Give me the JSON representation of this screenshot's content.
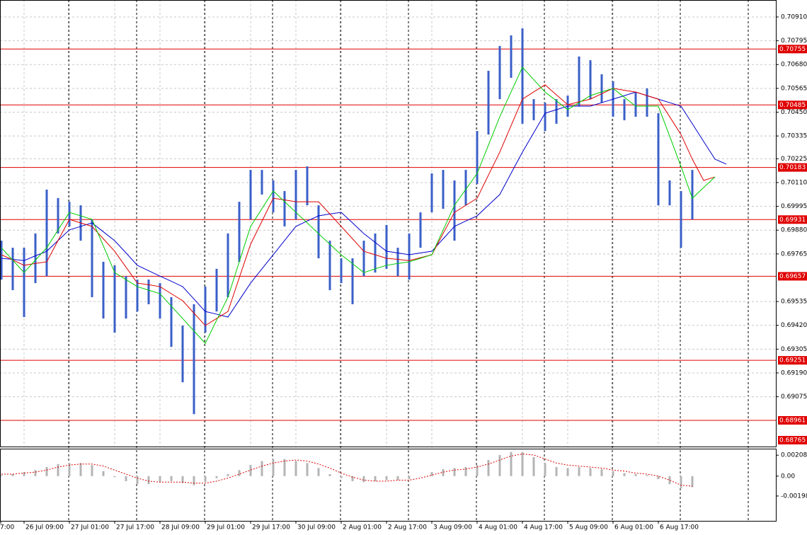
{
  "chart_data": {
    "type": "price_bars",
    "categories": [
      "7:00",
      null,
      null,
      null,
      "26 Jul 09:00",
      null,
      null,
      null,
      "27 Jul 01:00",
      null,
      null,
      null,
      "27 Jul 17:00",
      null,
      null,
      null,
      "28 Jul 09:00",
      null,
      null,
      null,
      "29 Jul 01:00",
      null,
      null,
      null,
      "29 Jul 17:00",
      null,
      null,
      null,
      "30 Jul 09:00",
      null,
      null,
      null,
      "2 Aug 01:00",
      null,
      null,
      null,
      "2 Aug 17:00",
      null,
      null,
      null,
      "3 Aug 09:00",
      null,
      null,
      null,
      "4 Aug 01:00",
      null,
      null,
      null,
      "4 Aug 17:00",
      null,
      null,
      null,
      "5 Aug 09:00",
      null,
      null,
      null,
      "6 Aug 01:00",
      null,
      null,
      null,
      "6 Aug 17:00",
      null,
      null,
      null,
      null,
      null,
      null
    ],
    "high": [
      null,
      null,
      0.69829,
      0.69795,
      0.69795,
      0.69864,
      0.70076,
      0.70035,
      0.70017,
      0.7,
      0.69932,
      0.69727,
      0.6971,
      0.69658,
      0.69641,
      0.69641,
      0.69624,
      0.69556,
      0.69419,
      0.69522,
      0.69607,
      0.69693,
      0.69864,
      0.70017,
      0.70171,
      0.70171,
      0.7012,
      0.70069,
      0.70171,
      0.70188,
      0.7,
      0.69829,
      0.69744,
      0.69744,
      0.69829,
      0.69864,
      0.69905,
      0.69795,
      0.69864,
      0.69966,
      0.70154,
      0.70171,
      0.7012,
      0.70171,
      0.70359,
      0.7065,
      0.7077,
      0.70821,
      0.70855,
      0.70513,
      0.70496,
      0.70513,
      0.7053,
      0.70719,
      0.70701,
      0.70633,
      0.70599,
      0.70513,
      0.70548,
      0.70565,
      0.70445,
      0.7012,
      0.70069,
      0.70171,
      null,
      null,
      null
    ],
    "low": [
      null,
      null,
      0.69641,
      0.6959,
      0.6946,
      0.69624,
      0.69658,
      0.69864,
      0.69898,
      0.69829,
      0.69556,
      0.69453,
      0.69385,
      0.69453,
      0.69487,
      0.69522,
      0.69453,
      0.69316,
      0.69145,
      0.68991,
      0.69385,
      0.69487,
      0.69556,
      0.69727,
      0.69932,
      0.70052,
      0.69966,
      0.69898,
      0.69932,
      0.7,
      0.69744,
      0.6959,
      0.69624,
      0.69522,
      0.69658,
      0.69675,
      0.69693,
      0.69658,
      0.69641,
      0.69795,
      0.69966,
      0.69983,
      0.69829,
      0.7,
      0.70103,
      0.70342,
      0.70513,
      0.70616,
      0.70394,
      0.70411,
      0.70359,
      0.70394,
      0.70428,
      0.70479,
      0.70513,
      0.70496,
      0.70428,
      0.70411,
      0.70428,
      0.70428,
      0.7,
      0.7,
      0.69795,
      0.69932,
      null,
      null,
      null
    ],
    "bar_color": "#3a5fc8",
    "moving_averages": [
      {
        "color": "#0000cc",
        "values": [
          null,
          null,
          0.69744,
          0.69739,
          0.69733,
          0.69756,
          0.69778,
          0.6983,
          0.69881,
          0.69898,
          0.69915,
          0.69872,
          0.69829,
          0.6977,
          0.6971,
          0.69684,
          0.69658,
          0.69633,
          0.69607,
          0.69547,
          0.69487,
          0.69474,
          0.6946,
          0.69542,
          0.69624,
          0.69693,
          0.69761,
          0.6983,
          0.69898,
          0.69924,
          0.69949,
          0.69958,
          0.69966,
          0.69915,
          0.69863,
          0.69821,
          0.69778,
          0.6977,
          0.69761,
          0.6977,
          0.69778,
          0.69838,
          0.69898,
          0.69924,
          0.69949,
          0.70001,
          0.70052,
          0.70155,
          0.70257,
          0.70351,
          0.70445,
          0.70462,
          0.70479,
          0.70479,
          0.70479,
          0.70496,
          0.70513,
          0.7053,
          0.70547,
          0.7053,
          0.70513,
          0.70496,
          0.70479,
          0.70394,
          0.70308,
          0.70223,
          0.70199
        ]
      },
      {
        "color": "#dd0000",
        "values": [
          null,
          null,
          0.69761,
          0.69736,
          0.6971,
          0.69719,
          0.69727,
          0.6983,
          0.69932,
          0.69915,
          0.69898,
          0.69838,
          0.69778,
          0.69701,
          0.69624,
          0.69616,
          0.69607,
          0.69573,
          0.69539,
          0.69479,
          0.69419,
          0.69453,
          0.69487,
          0.6965,
          0.69812,
          0.69923,
          0.70034,
          0.70026,
          0.70017,
          0.70017,
          0.70017,
          0.69958,
          0.69898,
          0.69838,
          0.69778,
          0.69761,
          0.69744,
          0.69739,
          0.69733,
          0.69747,
          0.69761,
          0.69864,
          0.69966,
          0.7,
          0.70034,
          0.70146,
          0.70257,
          0.70385,
          0.70513,
          0.70548,
          0.70582,
          0.70534,
          0.70486,
          0.705,
          0.70513,
          0.70539,
          0.70565,
          0.70556,
          0.70547,
          0.7053,
          0.70513,
          0.70428,
          0.70342,
          0.70223,
          0.7012,
          0.70137,
          null
        ]
      },
      {
        "color": "#00cc00",
        "values": [
          null,
          null,
          0.69795,
          0.69735,
          0.69675,
          0.69735,
          0.69795,
          0.69881,
          0.69966,
          0.69949,
          0.69932,
          0.69804,
          0.69675,
          0.69641,
          0.69607,
          0.6959,
          0.69573,
          0.69513,
          0.69453,
          0.69393,
          0.69333,
          0.69445,
          0.69556,
          0.69727,
          0.69898,
          0.69984,
          0.70069,
          0.70018,
          0.69966,
          0.69915,
          0.69863,
          0.69812,
          0.69761,
          0.69718,
          0.69675,
          0.69693,
          0.6971,
          0.69719,
          0.69727,
          0.69744,
          0.69761,
          0.69881,
          0.7,
          0.70077,
          0.70154,
          0.70291,
          0.70428,
          0.70548,
          0.70667,
          0.70607,
          0.70547,
          0.70505,
          0.70462,
          0.70496,
          0.7053,
          0.70548,
          0.70565,
          0.70522,
          0.70479,
          0.70479,
          0.70479,
          0.70334,
          0.70188,
          0.70034,
          0.70086,
          0.70137,
          null
        ]
      }
    ],
    "ylim": [
      0.68831,
      0.70992
    ],
    "yticks": [
      {
        "value": 0.7091,
        "label": "0.70910"
      },
      {
        "value": 0.70795,
        "label": "0.70795"
      },
      {
        "value": 0.7068,
        "label": "0.70680"
      },
      {
        "value": 0.70565,
        "label": "0.70565"
      },
      {
        "value": 0.7045,
        "label": "0.70450"
      },
      {
        "value": 0.70335,
        "label": "0.70335"
      },
      {
        "value": 0.70225,
        "label": "0.70225"
      },
      {
        "value": 0.7011,
        "label": "0.70110"
      },
      {
        "value": 0.69995,
        "label": "0.69995"
      },
      {
        "value": 0.6988,
        "label": "0.69880"
      },
      {
        "value": 0.69765,
        "label": "0.69765"
      },
      {
        "value": 0.69535,
        "label": "0.69535"
      },
      {
        "value": 0.6942,
        "label": "0.69420"
      },
      {
        "value": 0.69305,
        "label": "0.69305"
      },
      {
        "value": 0.6919,
        "label": "0.69190"
      },
      {
        "value": 0.69075,
        "label": "0.69075"
      }
    ],
    "levels": [
      {
        "value": 0.70755,
        "label": "0.70755"
      },
      {
        "value": 0.70485,
        "label": "0.70485"
      },
      {
        "value": 0.70183,
        "label": "0.70183"
      },
      {
        "value": 0.69931,
        "label": "0.69931"
      },
      {
        "value": 0.69657,
        "label": "0.69657"
      },
      {
        "value": 0.69251,
        "label": "0.69251"
      },
      {
        "value": 0.68961,
        "label": "0.68961"
      },
      {
        "value": 0.68765,
        "label": "0.68765"
      }
    ],
    "level_color": "#e00000",
    "grid": true,
    "oscillator": {
      "type": "histogram",
      "color": "#b4b4b4",
      "values": [
        null,
        null,
        0.0001,
        0.0002,
        0.0004,
        0.0006,
        0.0009,
        0.0012,
        0.0013,
        0.0013,
        0.0011,
        0.0005,
        -0.0001,
        -0.0005,
        -0.0008,
        -0.0008,
        -0.0006,
        -0.0005,
        -0.0007,
        -0.0009,
        -0.0006,
        -0.0002,
        0.0002,
        0.0006,
        0.0011,
        0.0015,
        0.0017,
        0.0017,
        0.0015,
        0.0013,
        0.0008,
        0.0002,
        -0.0002,
        -0.0005,
        -0.0006,
        -0.0005,
        -0.0004,
        -0.0004,
        -0.0003,
        0,
        0.0004,
        0.0007,
        0.0008,
        0.0009,
        0.0011,
        0.0016,
        0.0021,
        0.0024,
        0.0024,
        0.0019,
        0.0013,
        0.0009,
        0.0008,
        0.0009,
        0.0008,
        0.0007,
        0.0005,
        0.0003,
        0.0002,
        0.0001,
        -0.0003,
        -0.0008,
        -0.0012,
        -0.0011,
        null,
        null,
        null
      ],
      "signal": {
        "color": "#dd0000",
        "values": [
          null,
          null,
          0.0002,
          0.0002,
          0.0003,
          0.0004,
          0.0006,
          0.0009,
          0.0011,
          0.0012,
          0.0012,
          0.001,
          0.0006,
          0.0002,
          -0.0002,
          -0.0005,
          -0.0006,
          -0.0006,
          -0.0006,
          -0.0007,
          -0.0007,
          -0.0005,
          -0.0002,
          0.0002,
          0.0006,
          0.001,
          0.0013,
          0.0015,
          0.0016,
          0.0015,
          0.0012,
          0.0008,
          0.0003,
          -0.0001,
          -0.0004,
          -0.0005,
          -0.0005,
          -0.0004,
          -0.0004,
          -0.0002,
          0.0001,
          0.0004,
          0.0006,
          0.0007,
          0.0009,
          0.0012,
          0.0016,
          0.002,
          0.0022,
          0.0021,
          0.0017,
          0.0013,
          0.0011,
          0.001,
          0.0009,
          0.0008,
          0.0006,
          0.0005,
          0.0003,
          0.0002,
          0,
          -0.0004,
          -0.0009,
          -0.001,
          null,
          null,
          null
        ]
      },
      "ylim": [
        -0.00445,
        0.00273
      ],
      "yticks": [
        0.002081,
        {
          "value": 0,
          "label": "0.00"
        },
        -0.00198
      ]
    }
  }
}
